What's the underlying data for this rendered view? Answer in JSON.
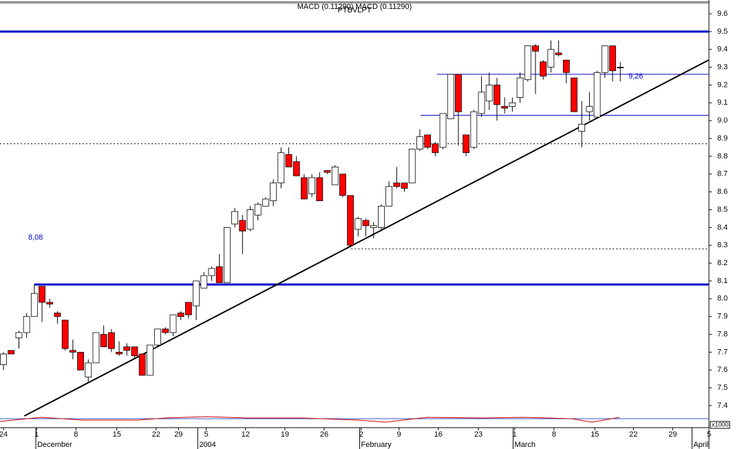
{
  "chart_data": {
    "type": "candlestick",
    "title": "PTBVLPT",
    "subtitle": "MACD (0.11290) MACD (0.11290)",
    "x": [
      0,
      1,
      2,
      3,
      4,
      5,
      6,
      7,
      8,
      9,
      10,
      11,
      12,
      13,
      14,
      15,
      16,
      17,
      18,
      19,
      20,
      21,
      22,
      23,
      24,
      25,
      26,
      27,
      28,
      29,
      30,
      31,
      32,
      33,
      34,
      35,
      36,
      37,
      38,
      39,
      40,
      41,
      42,
      43,
      44,
      45,
      46,
      47,
      48,
      49,
      50,
      51,
      52,
      53,
      54,
      55,
      56,
      57,
      58,
      59,
      60,
      61,
      62,
      63,
      64,
      65,
      66,
      67,
      68,
      69,
      70,
      71,
      72,
      73,
      74,
      75,
      76,
      77,
      78,
      79,
      80
    ],
    "open": [
      7.63,
      7.71,
      7.78,
      7.81,
      7.9,
      8.07,
      7.98,
      7.92,
      7.88,
      7.71,
      7.7,
      7.56,
      7.64,
      7.8,
      7.81,
      7.7,
      7.73,
      7.73,
      7.69,
      7.57,
      7.74,
      7.83,
      7.81,
      7.92,
      7.98,
      7.96,
      8.06,
      8.13,
      8.18,
      8.09,
      8.42,
      8.44,
      8.39,
      8.47,
      8.52,
      8.55,
      8.65,
      8.81,
      8.77,
      8.68,
      8.59,
      8.68,
      8.72,
      8.64,
      8.7,
      8.58,
      8.39,
      8.44,
      8.4,
      8.4,
      8.52,
      8.65,
      8.65,
      8.65,
      8.84,
      8.92,
      8.87,
      8.85,
      9.01,
      9.26,
      8.92,
      8.85,
      9.04,
      9.11,
      9.2,
      9.08,
      9.08,
      9.13,
      9.23,
      9.42,
      9.33,
      9.3,
      9.38,
      9.34,
      9.24,
      8.94,
      9.05,
      9.02,
      9.27,
      9.42,
      9.3
    ],
    "high": [
      7.7,
      7.71,
      7.82,
      7.92,
      8.08,
      8.07,
      8.0,
      7.93,
      7.88,
      7.77,
      7.7,
      7.66,
      7.81,
      7.85,
      7.83,
      7.76,
      7.75,
      7.73,
      7.69,
      7.74,
      7.83,
      7.84,
      7.91,
      7.93,
      7.98,
      8.1,
      8.15,
      8.18,
      8.25,
      8.4,
      8.51,
      8.47,
      8.52,
      8.54,
      8.57,
      8.67,
      8.85,
      8.85,
      8.8,
      8.7,
      8.7,
      8.71,
      8.72,
      8.75,
      8.7,
      8.58,
      8.46,
      8.45,
      8.43,
      8.53,
      8.66,
      8.74,
      8.65,
      8.84,
      8.95,
      8.92,
      8.88,
      9.04,
      9.26,
      9.26,
      8.92,
      9.06,
      9.25,
      9.27,
      9.24,
      9.13,
      9.13,
      9.27,
      9.42,
      9.43,
      9.34,
      9.45,
      9.45,
      9.34,
      9.24,
      9.11,
      9.16,
      9.28,
      9.42,
      9.42,
      9.33
    ],
    "low": [
      7.6,
      7.69,
      7.72,
      7.78,
      7.9,
      7.87,
      7.95,
      7.86,
      7.71,
      7.66,
      7.6,
      7.53,
      7.64,
      7.73,
      7.7,
      7.68,
      7.68,
      7.66,
      7.57,
      7.57,
      7.73,
      7.8,
      7.79,
      7.88,
      7.89,
      7.88,
      8.06,
      8.1,
      8.09,
      8.09,
      8.4,
      8.25,
      8.38,
      8.44,
      8.52,
      8.52,
      8.62,
      8.74,
      8.69,
      8.56,
      8.57,
      8.55,
      8.7,
      8.64,
      8.57,
      8.29,
      8.35,
      8.35,
      8.34,
      8.38,
      8.52,
      8.62,
      8.6,
      8.65,
      8.83,
      8.84,
      8.8,
      8.84,
      9.01,
      8.86,
      8.8,
      8.84,
      9.02,
      9.06,
      9.0,
      9.04,
      9.05,
      9.1,
      9.22,
      9.15,
      9.23,
      9.27,
      9.36,
      9.21,
      9.05,
      8.85,
      9.0,
      9.01,
      9.24,
      9.22,
      9.22
    ],
    "close": [
      7.69,
      7.69,
      7.81,
      7.9,
      8.03,
      7.98,
      7.97,
      7.9,
      7.72,
      7.7,
      7.6,
      7.64,
      7.81,
      7.73,
      7.72,
      7.69,
      7.71,
      7.68,
      7.57,
      7.74,
      7.83,
      7.81,
      7.91,
      7.9,
      7.91,
      8.1,
      8.13,
      8.17,
      8.09,
      8.4,
      8.49,
      8.38,
      8.5,
      8.53,
      8.56,
      8.65,
      8.82,
      8.74,
      8.69,
      8.56,
      8.68,
      8.55,
      8.71,
      8.74,
      8.58,
      8.3,
      8.45,
      8.41,
      8.41,
      8.52,
      8.63,
      8.63,
      8.62,
      8.84,
      8.91,
      8.85,
      8.82,
      9.04,
      9.26,
      9.05,
      8.82,
      9.05,
      9.16,
      9.2,
      9.09,
      9.07,
      9.1,
      9.24,
      9.42,
      9.39,
      9.25,
      9.4,
      9.37,
      9.27,
      9.05,
      8.98,
      9.08,
      9.27,
      9.42,
      9.28,
      9.3
    ],
    "up_color": "#ffffff",
    "down_color": "#ff0000",
    "xlim": [
      -0.45,
      91.5
    ],
    "xticks": [
      {
        "value": 0,
        "label": "24"
      },
      {
        "value": 4.3,
        "label": "1"
      },
      {
        "value": 9.4,
        "label": "8"
      },
      {
        "value": 14.7,
        "label": "15"
      },
      {
        "value": 19.8,
        "label": "22"
      },
      {
        "value": 22.7,
        "label": "29"
      },
      {
        "value": 26.3,
        "label": "5"
      },
      {
        "value": 31.4,
        "label": "12"
      },
      {
        "value": 36.5,
        "label": "19"
      },
      {
        "value": 41.6,
        "label": "26"
      },
      {
        "value": 46.4,
        "label": "2"
      },
      {
        "value": 51.3,
        "label": "9"
      },
      {
        "value": 56.4,
        "label": "16"
      },
      {
        "value": 61.6,
        "label": "23"
      },
      {
        "value": 66.3,
        "label": "1"
      },
      {
        "value": 71.4,
        "label": "8"
      },
      {
        "value": 76.7,
        "label": "15"
      },
      {
        "value": 81.7,
        "label": "22"
      },
      {
        "value": 86.8,
        "label": "29"
      },
      {
        "value": 91.5,
        "label": "5"
      }
    ],
    "month_ticks": [
      {
        "value": 4.2,
        "label": "December"
      },
      {
        "value": 25.2,
        "label": "2004"
      },
      {
        "value": 46.2,
        "label": "February"
      },
      {
        "value": 66.1,
        "label": "March"
      },
      {
        "value": 89.3,
        "label": "April"
      }
    ],
    "ylim": [
      7.4,
      9.6
    ],
    "yticks": [
      9.6,
      9.5,
      9.4,
      9.3,
      9.2,
      9.1,
      {
        "value": 9,
        "label": "9.0"
      },
      8.9,
      8.8,
      8.7,
      8.6,
      8.5,
      8.4,
      8.3,
      8.2,
      8.1,
      {
        "value": 8,
        "label": "8.0"
      },
      7.9,
      7.8,
      7.7,
      7.6,
      7.5,
      7.4
    ],
    "levels": [
      {
        "value": 9.5,
        "from": -0.45,
        "color": "#0000cc",
        "thick": true,
        "dashed": false
      },
      {
        "value": 8.08,
        "from": 4.0,
        "color": "#0000cc",
        "thick": true,
        "dashed": false
      },
      {
        "value": 9.26,
        "from": 56.2,
        "color": "#0000cc",
        "thick": false,
        "dashed": false
      },
      {
        "value": 9.03,
        "from": 54.1,
        "color": "#0000cc",
        "thick": false,
        "dashed": false
      },
      {
        "value": 8.87,
        "from": -0.45,
        "color": "#000000",
        "thick": false,
        "dashed": true
      },
      {
        "value": 8.28,
        "from": 45.1,
        "color": "#000000",
        "thick": false,
        "dashed": true
      }
    ],
    "trendline": {
      "x": [
        2.7,
        91.5
      ],
      "y": [
        7.342,
        9.341
      ],
      "color": "#000000"
    },
    "annotations": [
      "8,08",
      "9,26"
    ],
    "indicator_unit": "x1000"
  }
}
